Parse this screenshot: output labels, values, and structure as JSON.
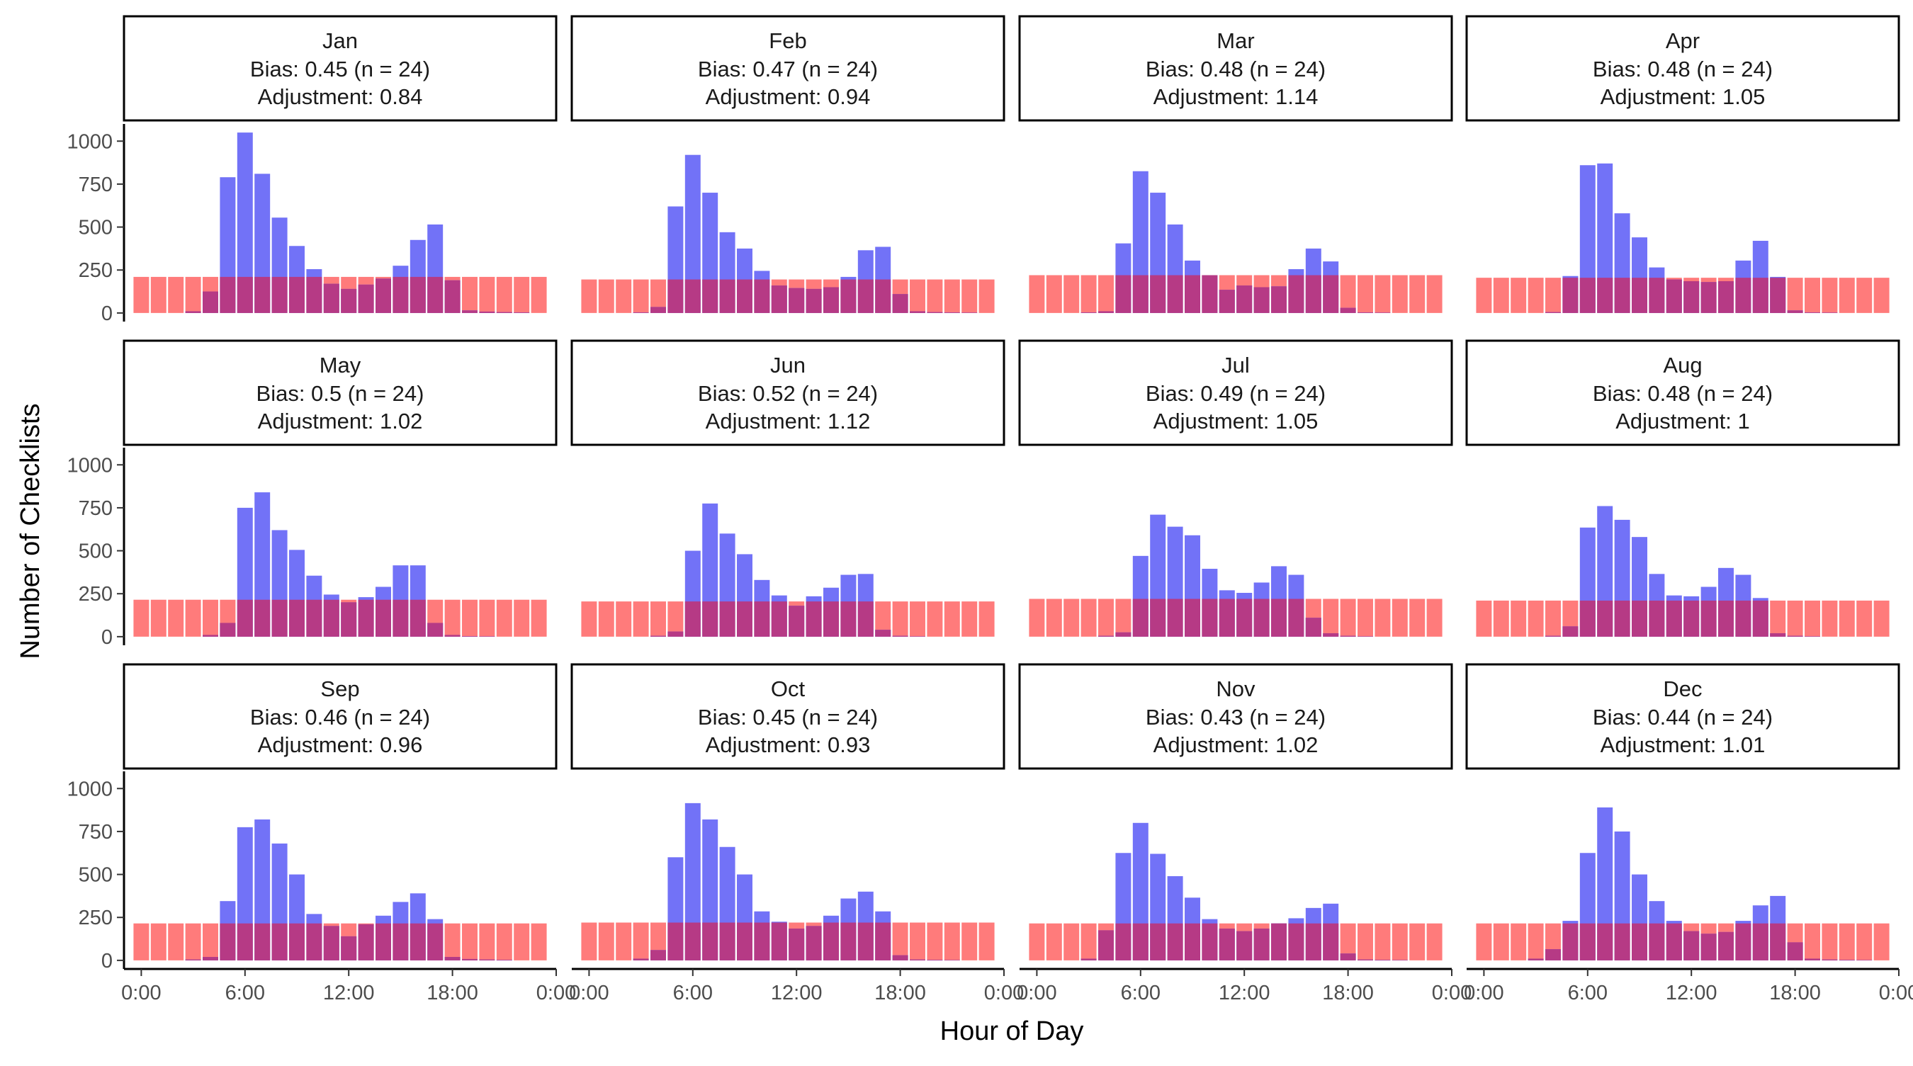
{
  "chart_data": {
    "type": "bar",
    "ylabel": "Number of Checklists",
    "xlabel": "Hour of Day",
    "ylim": [
      -50,
      1100
    ],
    "xlim": [
      -1,
      24
    ],
    "yticks": [
      0,
      250,
      500,
      750,
      1000
    ],
    "yticklabels": [
      "0",
      "250",
      "500",
      "750",
      "1000"
    ],
    "xticks": [
      0,
      6,
      12,
      18,
      24
    ],
    "xticklabels": [
      "0:00",
      "6:00",
      "12:00",
      "18:00",
      "0:00"
    ],
    "grid": false,
    "series_colors": {
      "observed": "#7272f7",
      "expected": "#ff7b7b",
      "overlap": "#b63a85"
    },
    "hours": [
      0,
      1,
      2,
      3,
      4,
      5,
      6,
      7,
      8,
      9,
      10,
      11,
      12,
      13,
      14,
      15,
      16,
      17,
      18,
      19,
      20,
      21,
      22,
      23
    ],
    "panels": [
      {
        "month": "Jan",
        "bias": "Bias: 0.45 (n = 24)",
        "adjustment": "Adjustment: 0.84",
        "expected": 210,
        "observed": [
          0,
          0,
          0,
          10,
          125,
          790,
          1050,
          810,
          555,
          390,
          255,
          170,
          140,
          165,
          200,
          275,
          425,
          515,
          190,
          15,
          8,
          5,
          3,
          0
        ]
      },
      {
        "month": "Feb",
        "bias": "Bias: 0.47 (n = 24)",
        "adjustment": "Adjustment: 0.94",
        "expected": 195,
        "observed": [
          0,
          0,
          0,
          3,
          35,
          620,
          920,
          700,
          470,
          375,
          245,
          160,
          145,
          140,
          150,
          210,
          365,
          385,
          110,
          10,
          5,
          3,
          2,
          0
        ]
      },
      {
        "month": "Mar",
        "bias": "Bias: 0.48 (n = 24)",
        "adjustment": "Adjustment: 1.14",
        "expected": 220,
        "observed": [
          0,
          0,
          0,
          3,
          10,
          405,
          825,
          700,
          515,
          305,
          220,
          135,
          160,
          150,
          155,
          255,
          375,
          300,
          30,
          3,
          2,
          0,
          0,
          0
        ]
      },
      {
        "month": "Apr",
        "bias": "Bias: 0.48 (n = 24)",
        "adjustment": "Adjustment: 1.05",
        "expected": 205,
        "observed": [
          0,
          0,
          0,
          0,
          5,
          215,
          860,
          870,
          580,
          440,
          265,
          195,
          185,
          180,
          185,
          305,
          420,
          210,
          15,
          3,
          2,
          0,
          0,
          0
        ]
      },
      {
        "month": "May",
        "bias": "Bias: 0.5 (n = 24)",
        "adjustment": "Adjustment: 1.02",
        "expected": 215,
        "observed": [
          0,
          0,
          0,
          0,
          10,
          80,
          750,
          840,
          620,
          505,
          355,
          245,
          200,
          230,
          290,
          415,
          415,
          80,
          10,
          3,
          2,
          0,
          0,
          0
        ]
      },
      {
        "month": "Jun",
        "bias": "Bias: 0.52 (n = 24)",
        "adjustment": "Adjustment: 1.12",
        "expected": 205,
        "observed": [
          0,
          0,
          0,
          0,
          5,
          30,
          500,
          775,
          600,
          480,
          330,
          240,
          180,
          235,
          285,
          360,
          365,
          40,
          5,
          2,
          0,
          0,
          0,
          0
        ]
      },
      {
        "month": "Jul",
        "bias": "Bias: 0.49 (n = 24)",
        "adjustment": "Adjustment: 1.05",
        "expected": 220,
        "observed": [
          0,
          0,
          0,
          0,
          5,
          25,
          470,
          710,
          640,
          590,
          395,
          270,
          255,
          315,
          410,
          360,
          110,
          20,
          5,
          2,
          0,
          0,
          0,
          0
        ]
      },
      {
        "month": "Aug",
        "bias": "Bias: 0.48 (n = 24)",
        "adjustment": "Adjustment: 1",
        "expected": 210,
        "observed": [
          0,
          0,
          0,
          0,
          5,
          60,
          635,
          760,
          680,
          580,
          365,
          240,
          235,
          290,
          400,
          360,
          225,
          20,
          5,
          2,
          0,
          0,
          0,
          0
        ]
      },
      {
        "month": "Sep",
        "bias": "Bias: 0.46 (n = 24)",
        "adjustment": "Adjustment: 0.96",
        "expected": 215,
        "observed": [
          0,
          0,
          0,
          5,
          20,
          345,
          775,
          820,
          680,
          500,
          270,
          200,
          140,
          210,
          260,
          340,
          390,
          240,
          20,
          8,
          5,
          3,
          0,
          0
        ]
      },
      {
        "month": "Oct",
        "bias": "Bias: 0.45 (n = 24)",
        "adjustment": "Adjustment: 0.93",
        "expected": 220,
        "observed": [
          0,
          0,
          0,
          10,
          60,
          600,
          915,
          820,
          660,
          500,
          285,
          225,
          185,
          200,
          260,
          360,
          400,
          285,
          30,
          5,
          3,
          2,
          0,
          0
        ]
      },
      {
        "month": "Nov",
        "bias": "Bias: 0.43 (n = 24)",
        "adjustment": "Adjustment: 1.02",
        "expected": 215,
        "observed": [
          0,
          0,
          0,
          10,
          175,
          625,
          800,
          620,
          490,
          365,
          240,
          185,
          170,
          185,
          215,
          245,
          305,
          330,
          40,
          5,
          3,
          2,
          0,
          0
        ]
      },
      {
        "month": "Dec",
        "bias": "Bias: 0.44 (n = 24)",
        "adjustment": "Adjustment: 1.01",
        "expected": 215,
        "observed": [
          0,
          0,
          0,
          10,
          65,
          230,
          625,
          890,
          750,
          500,
          345,
          230,
          170,
          155,
          165,
          230,
          320,
          375,
          105,
          10,
          5,
          3,
          2,
          0
        ]
      }
    ]
  }
}
